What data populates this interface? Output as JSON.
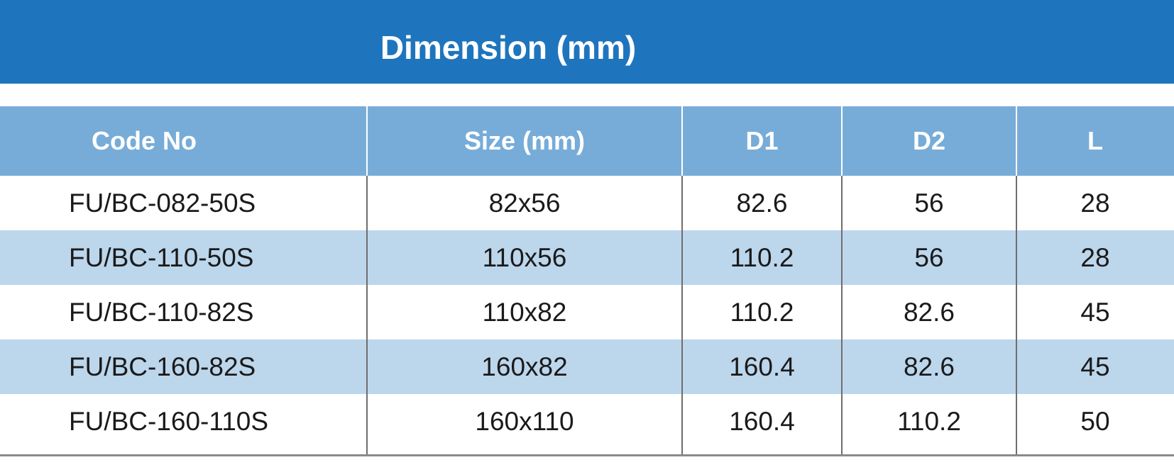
{
  "title": "Dimension (mm)",
  "table": {
    "header": [
      "Code No",
      "Size (mm)",
      "D1",
      "D2",
      "L"
    ],
    "rows": [
      [
        "FU/BC-082-50S",
        "82x56",
        "82.6",
        "56",
        "28"
      ],
      [
        "FU/BC-110-50S",
        "110x56",
        "110.2",
        "56",
        "28"
      ],
      [
        "FU/BC-110-82S",
        "110x82",
        "110.2",
        "82.6",
        "45"
      ],
      [
        "FU/BC-160-82S",
        "160x82",
        "160.4",
        "82.6",
        "45"
      ],
      [
        "FU/BC-160-110S",
        "160x110",
        "160.4",
        "110.2",
        "50"
      ]
    ]
  }
}
